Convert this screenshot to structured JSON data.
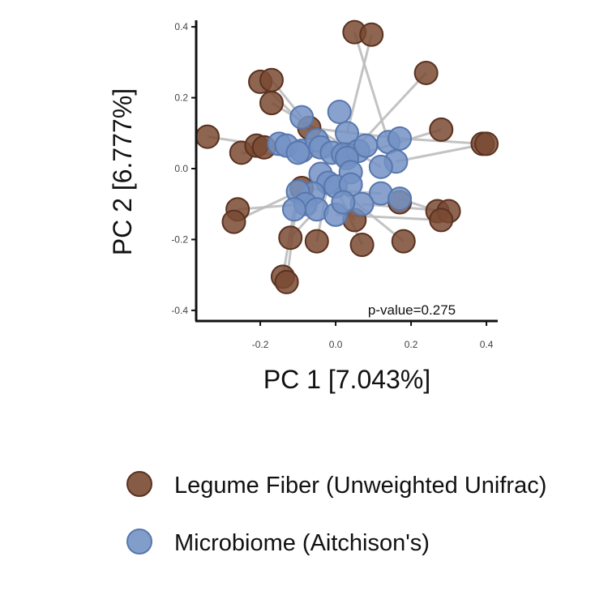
{
  "chart_data": {
    "type": "scatter",
    "xlabel": "PC 1 [7.043%]",
    "ylabel": "PC 2 [6.777%]",
    "xlim": [
      -0.37,
      0.43
    ],
    "ylim": [
      -0.43,
      0.43
    ],
    "xticks": [
      -0.2,
      0.0,
      0.2,
      0.4
    ],
    "yticks": [
      -0.4,
      -0.2,
      0.0,
      0.2,
      0.4
    ],
    "xtick_labels": [
      "-0.2",
      "0.0",
      "0.2",
      "0.4"
    ],
    "ytick_labels": [
      "-0.4",
      "-0.2",
      "0.0",
      "0.2",
      "0.4"
    ],
    "annotation": "p-value=0.275",
    "legend_position": "bottom",
    "connectors": "each Legume Fiber point is joined by a grey line to its paired Microbiome point",
    "series": [
      {
        "name": "Legume Fiber (Unweighted Unifrac)",
        "color": "#7a4a32",
        "edge": "#5a3220",
        "points": [
          [
            0.05,
            0.385
          ],
          [
            0.095,
            0.378
          ],
          [
            -0.2,
            0.245
          ],
          [
            -0.17,
            0.25
          ],
          [
            -0.17,
            0.185
          ],
          [
            0.24,
            0.27
          ],
          [
            -0.34,
            0.09
          ],
          [
            -0.25,
            0.045
          ],
          [
            -0.21,
            0.065
          ],
          [
            -0.19,
            0.06
          ],
          [
            -0.07,
            0.115
          ],
          [
            0.28,
            0.11
          ],
          [
            0.39,
            0.07
          ],
          [
            0.4,
            0.07
          ],
          [
            0.03,
            0.04
          ],
          [
            -0.26,
            -0.115
          ],
          [
            -0.27,
            -0.15
          ],
          [
            -0.09,
            -0.055
          ],
          [
            0.17,
            -0.095
          ],
          [
            0.27,
            -0.12
          ],
          [
            0.3,
            -0.12
          ],
          [
            0.28,
            -0.145
          ],
          [
            0.05,
            -0.145
          ],
          [
            -0.12,
            -0.195
          ],
          [
            -0.05,
            -0.205
          ],
          [
            0.07,
            -0.215
          ],
          [
            0.18,
            -0.205
          ],
          [
            -0.14,
            -0.305
          ],
          [
            -0.13,
            -0.32
          ]
        ]
      },
      {
        "name": "Microbiome (Aitchison's)",
        "color": "#7392c4",
        "edge": "#5777ae",
        "points": [
          [
            -0.09,
            0.145
          ],
          [
            0.01,
            0.16
          ],
          [
            0.03,
            0.1
          ],
          [
            -0.15,
            0.07
          ],
          [
            -0.13,
            0.065
          ],
          [
            -0.09,
            0.05
          ],
          [
            -0.1,
            0.045
          ],
          [
            -0.05,
            0.08
          ],
          [
            -0.04,
            0.06
          ],
          [
            -0.01,
            0.045
          ],
          [
            0.02,
            0.04
          ],
          [
            0.06,
            0.05
          ],
          [
            0.08,
            0.065
          ],
          [
            0.14,
            0.075
          ],
          [
            0.17,
            0.085
          ],
          [
            0.16,
            0.02
          ],
          [
            0.12,
            0.005
          ],
          [
            0.03,
            0.03
          ],
          [
            0.04,
            -0.01
          ],
          [
            -0.04,
            -0.015
          ],
          [
            -0.02,
            -0.04
          ],
          [
            0.0,
            -0.05
          ],
          [
            0.04,
            -0.045
          ],
          [
            -0.06,
            -0.07
          ],
          [
            -0.1,
            -0.065
          ],
          [
            -0.08,
            -0.1
          ],
          [
            -0.05,
            -0.115
          ],
          [
            -0.11,
            -0.115
          ],
          [
            0.12,
            -0.07
          ],
          [
            0.17,
            -0.085
          ],
          [
            0.07,
            -0.1
          ],
          [
            0.0,
            -0.13
          ],
          [
            0.02,
            -0.095
          ]
        ]
      }
    ],
    "pairs": [
      [
        0,
        13
      ],
      [
        1,
        2
      ],
      [
        2,
        9
      ],
      [
        3,
        0
      ],
      [
        4,
        16
      ],
      [
        5,
        17
      ],
      [
        6,
        17
      ],
      [
        7,
        17
      ],
      [
        8,
        17
      ],
      [
        9,
        3
      ],
      [
        10,
        14
      ],
      [
        11,
        17
      ],
      [
        12,
        14
      ],
      [
        13,
        15
      ],
      [
        14,
        10
      ],
      [
        15,
        25
      ],
      [
        16,
        24
      ],
      [
        17,
        28
      ],
      [
        18,
        29
      ],
      [
        19,
        29
      ],
      [
        20,
        30
      ],
      [
        21,
        31
      ],
      [
        22,
        32
      ],
      [
        23,
        26
      ],
      [
        24,
        20
      ],
      [
        25,
        21
      ],
      [
        26,
        19
      ],
      [
        27,
        27
      ],
      [
        28,
        24
      ]
    ]
  },
  "legend": {
    "items": [
      {
        "label": "Legume Fiber (Unweighted Unifrac)",
        "color": "#7a4a32"
      },
      {
        "label": "Microbiome (Aitchison's)",
        "color": "#7392c4"
      }
    ]
  }
}
